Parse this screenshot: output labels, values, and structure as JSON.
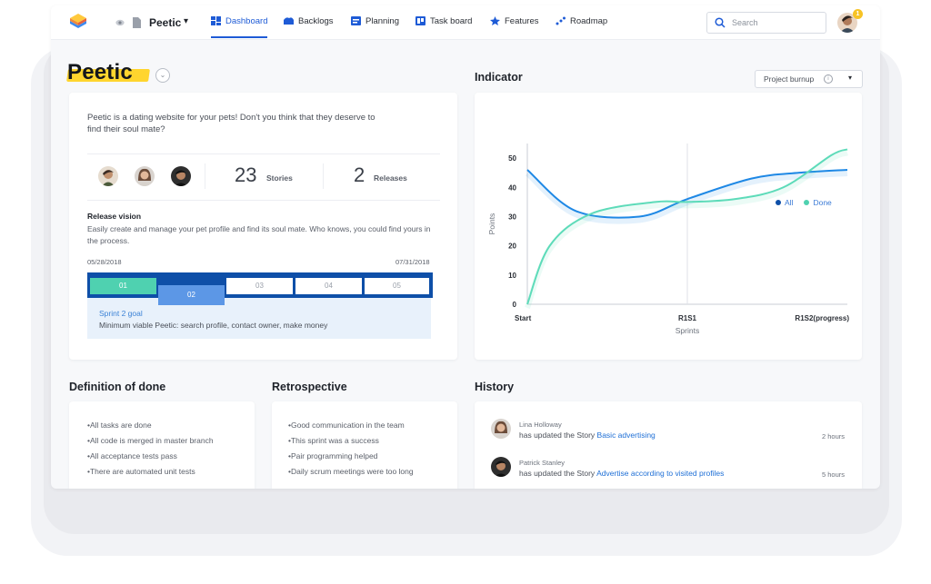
{
  "topbar": {
    "project_name": "Peetic",
    "nav": [
      {
        "label": "Dashboard",
        "active": true
      },
      {
        "label": "Backlogs"
      },
      {
        "label": "Planning"
      },
      {
        "label": "Task board"
      },
      {
        "label": "Features"
      },
      {
        "label": "Roadmap"
      }
    ],
    "search_placeholder": "Search",
    "notification_count": "1"
  },
  "page": {
    "title": "Peetic"
  },
  "project": {
    "description": "Peetic is a dating website for your pets! Don't you think that they deserve to find their soul mate?",
    "stories_count": "23",
    "stories_label": "Stories",
    "releases_count": "2",
    "releases_label": "Releases",
    "release_vision_title": "Release vision",
    "release_vision_text": "Easily create and manage your pet profile and find its soul mate. Who knows, you could find yours in the process.",
    "start_date": "05/28/2018",
    "end_date": "07/31/2018",
    "sprints": [
      "01",
      "02",
      "03",
      "04",
      "05"
    ],
    "sprint_goal_title": "Sprint 2 goal",
    "sprint_goal_text": "Minimum viable Peetic: search profile, contact owner, make money"
  },
  "indicator": {
    "title": "Indicator",
    "select_value": "Project burnup",
    "info_glyph": "i"
  },
  "chart_data": {
    "type": "line",
    "title": "",
    "xlabel": "Sprints",
    "ylabel": "Points",
    "categories": [
      "Start",
      "R1S1",
      "R1S2(progress)"
    ],
    "ylim": [
      0,
      55
    ],
    "yticks": [
      0,
      10,
      20,
      30,
      40,
      50
    ],
    "grid": "vertical line at R1S1",
    "legend_position": "top-right",
    "series": [
      {
        "name": "All",
        "color": "#1e88e5",
        "x": [
          0,
          0.15,
          0.35,
          0.5,
          0.7,
          0.85,
          1.0
        ],
        "values": [
          46,
          32,
          30,
          36,
          43,
          45,
          46
        ]
      },
      {
        "name": "Done",
        "color": "#5ddbb9",
        "x": [
          0,
          0.07,
          0.2,
          0.4,
          0.5,
          0.65,
          0.8,
          0.95,
          1.0
        ],
        "values": [
          0,
          20,
          31,
          35,
          35,
          36,
          40,
          51,
          53
        ]
      }
    ]
  },
  "definition_of_done": {
    "title": "Definition of done",
    "items": [
      "•All tasks are done",
      "•All code is merged in master branch",
      "•All acceptance tests pass",
      "•There are automated unit tests"
    ]
  },
  "retrospective": {
    "title": "Retrospective",
    "items": [
      "•Good communication in the team",
      "•This sprint was a success",
      "•Pair programming helped",
      "•Daily scrum meetings were too long"
    ]
  },
  "history": {
    "title": "History",
    "entries": [
      {
        "name": "Lina Holloway",
        "action": "has updated the Story ",
        "link": "Basic advertising",
        "time": "2 hours"
      },
      {
        "name": "Patrick Stanley",
        "action": "has updated the Story ",
        "link": "Advertise according to visited profiles",
        "time": "5 hours"
      }
    ]
  },
  "colors": {
    "accent": "#1e5bd6",
    "highlight": "#ffd52e",
    "timeline_blue": "#0e4fa8",
    "sprint_done": "#4fd1b0",
    "chart_all": "#1e88e5",
    "chart_done": "#5ddbb9"
  }
}
